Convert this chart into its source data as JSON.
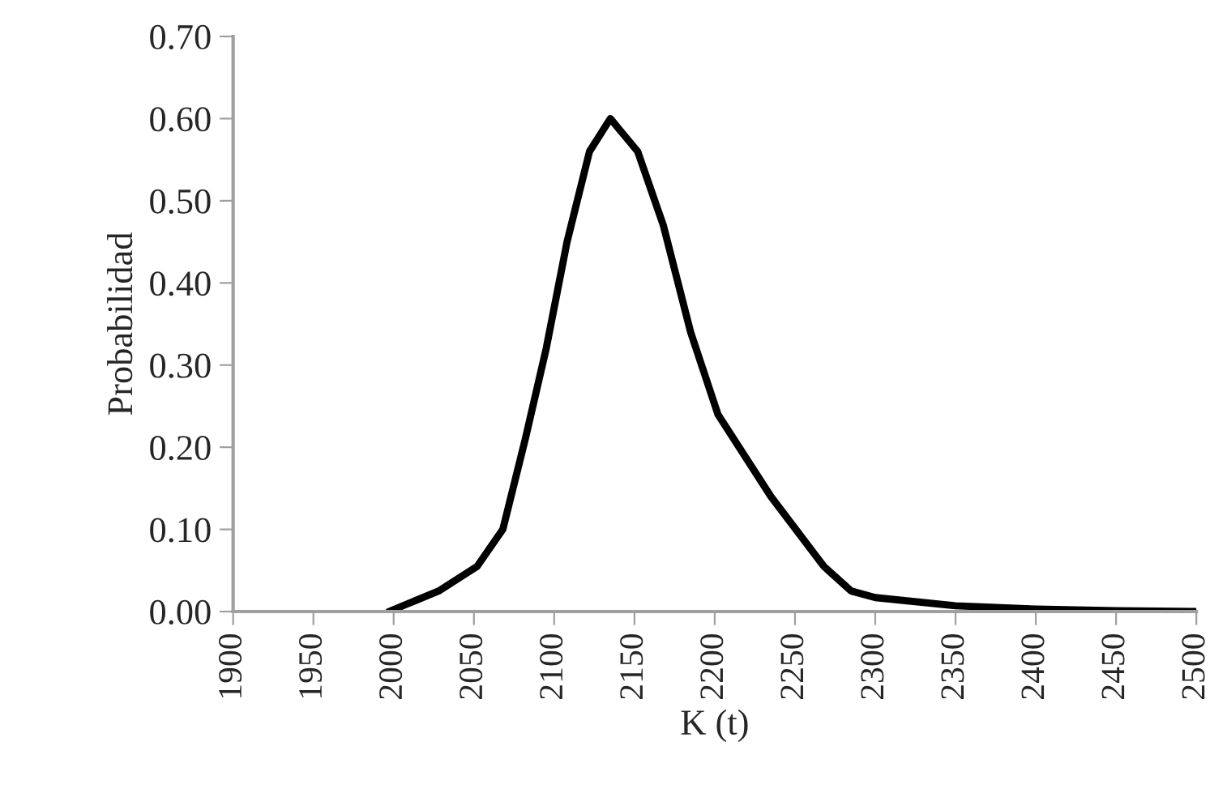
{
  "chart_data": {
    "type": "line",
    "xlabel": "K (t)",
    "ylabel": "Probabilidad",
    "series": [
      {
        "color": "#000000",
        "x": [
          1997,
          2028,
          2052,
          2068,
          2082,
          2095,
          2108,
          2122,
          2135,
          2152,
          2168,
          2185,
          2202,
          2235,
          2268,
          2285,
          2300,
          2350,
          2400,
          2450,
          2500
        ],
        "values": [
          0.0,
          0.025,
          0.055,
          0.1,
          0.21,
          0.32,
          0.45,
          0.56,
          0.6,
          0.56,
          0.47,
          0.34,
          0.24,
          0.14,
          0.055,
          0.025,
          0.017,
          0.007,
          0.003,
          0.001,
          0.0
        ]
      }
    ],
    "xlim": [
      1900,
      2500
    ],
    "xticks": [
      1900,
      1950,
      2000,
      2050,
      2100,
      2150,
      2200,
      2250,
      2300,
      2350,
      2400,
      2450,
      2500
    ],
    "ylim": [
      0,
      0.7
    ],
    "yticks": [
      {
        "value": 0,
        "label": "0.00"
      },
      {
        "value": 0.1,
        "label": "0.10"
      },
      {
        "value": 0.2,
        "label": "0.20"
      },
      {
        "value": 0.3,
        "label": "0.30"
      },
      {
        "value": 0.4,
        "label": "0.40"
      },
      {
        "value": 0.5,
        "label": "0.50"
      },
      {
        "value": 0.6,
        "label": "0.60"
      },
      {
        "value": 0.7,
        "label": "0.70"
      }
    ],
    "grid": false,
    "legend": false,
    "marker": "none",
    "line_style": "solid"
  }
}
